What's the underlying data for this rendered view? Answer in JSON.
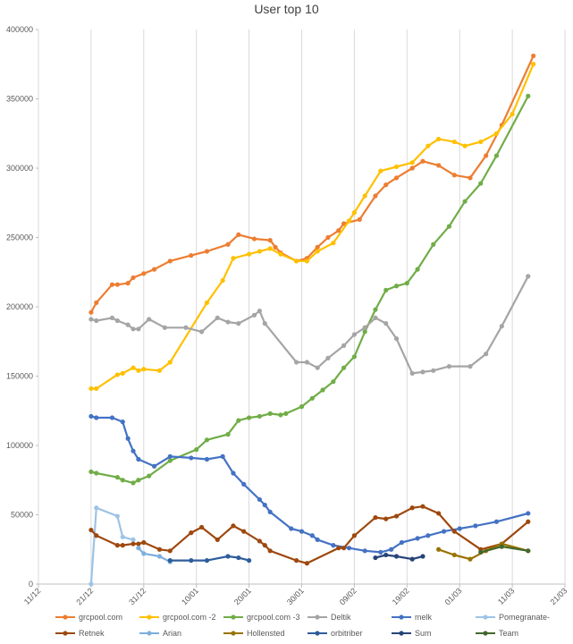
{
  "chart_data": {
    "type": "line",
    "title": "User top 10",
    "xlabel": "",
    "ylabel": "",
    "x_axis_type": "date",
    "xlim": [
      "2018-12-11",
      "2019-03-21"
    ],
    "ylim": [
      0,
      400000
    ],
    "y_ticks": [
      0,
      50000,
      100000,
      150000,
      200000,
      250000,
      300000,
      350000,
      400000
    ],
    "y_tick_labels": [
      "0",
      "50000",
      "100000",
      "150000",
      "200000",
      "250000",
      "300000",
      "350000",
      "400000"
    ],
    "x_ticks": [
      "2018-12-11",
      "2018-12-21",
      "2018-12-31",
      "2019-01-10",
      "2019-01-20",
      "2019-01-30",
      "2019-02-09",
      "2019-02-19",
      "2019-03-01",
      "2019-03-11",
      "2019-03-21"
    ],
    "x_tick_labels": [
      "11/12",
      "21/12",
      "31/12",
      "10/01",
      "20/01",
      "30/01",
      "09/02",
      "19/02",
      "01/03",
      "11/03",
      "21/03"
    ],
    "grid": "vertical",
    "legend_position": "bottom",
    "series": [
      {
        "name": "grcpool.com",
        "color": "#ED7D31",
        "points": [
          [
            "2018-12-21",
            196000
          ],
          [
            "2018-12-22",
            203000
          ],
          [
            "2018-12-25",
            216000
          ],
          [
            "2018-12-26",
            216000
          ],
          [
            "2018-12-28",
            217000
          ],
          [
            "2018-12-29",
            221000
          ],
          [
            "2018-12-31",
            224000
          ],
          [
            "2019-01-02",
            227000
          ],
          [
            "2019-01-05",
            233000
          ],
          [
            "2019-01-09",
            237000
          ],
          [
            "2019-01-12",
            240000
          ],
          [
            "2019-01-16",
            245000
          ],
          [
            "2019-01-18",
            252000
          ],
          [
            "2019-01-21",
            249000
          ],
          [
            "2019-01-24",
            248000
          ],
          [
            "2019-01-25",
            243000
          ],
          [
            "2019-01-26",
            239000
          ],
          [
            "2019-01-29",
            233000
          ],
          [
            "2019-01-31",
            235000
          ],
          [
            "2019-02-02",
            243000
          ],
          [
            "2019-02-04",
            250000
          ],
          [
            "2019-02-06",
            255000
          ],
          [
            "2019-02-07",
            260000
          ],
          [
            "2019-02-10",
            263000
          ],
          [
            "2019-02-13",
            280000
          ],
          [
            "2019-02-15",
            288000
          ],
          [
            "2019-02-17",
            293000
          ],
          [
            "2019-02-20",
            300000
          ],
          [
            "2019-02-22",
            305000
          ],
          [
            "2019-02-25",
            302000
          ],
          [
            "2019-02-28",
            295000
          ],
          [
            "2019-03-03",
            293000
          ],
          [
            "2019-03-06",
            309000
          ],
          [
            "2019-03-09",
            331000
          ],
          [
            "2019-03-15",
            381000
          ]
        ]
      },
      {
        "name": "grcpool.com -2",
        "color": "#FFC000",
        "points": [
          [
            "2018-12-21",
            141000
          ],
          [
            "2018-12-22",
            141000
          ],
          [
            "2018-12-26",
            151000
          ],
          [
            "2018-12-27",
            152000
          ],
          [
            "2018-12-29",
            156000
          ],
          [
            "2018-12-30",
            154000
          ],
          [
            "2018-12-31",
            155000
          ],
          [
            "2019-01-03",
            154000
          ],
          [
            "2019-01-05",
            160000
          ],
          [
            "2019-01-12",
            203000
          ],
          [
            "2019-01-15",
            219000
          ],
          [
            "2019-01-17",
            235000
          ],
          [
            "2019-01-20",
            238000
          ],
          [
            "2019-01-22",
            240000
          ],
          [
            "2019-01-24",
            242000
          ],
          [
            "2019-01-26",
            238000
          ],
          [
            "2019-01-29",
            233000
          ],
          [
            "2019-01-31",
            233000
          ],
          [
            "2019-02-02",
            240000
          ],
          [
            "2019-02-05",
            246000
          ],
          [
            "2019-02-08",
            262000
          ],
          [
            "2019-02-09",
            268000
          ],
          [
            "2019-02-11",
            280000
          ],
          [
            "2019-02-14",
            298000
          ],
          [
            "2019-02-17",
            301000
          ],
          [
            "2019-02-20",
            304000
          ],
          [
            "2019-02-23",
            316000
          ],
          [
            "2019-02-25",
            321000
          ],
          [
            "2019-02-28",
            319000
          ],
          [
            "2019-03-02",
            316000
          ],
          [
            "2019-03-05",
            319000
          ],
          [
            "2019-03-08",
            325000
          ],
          [
            "2019-03-11",
            339000
          ],
          [
            "2019-03-15",
            375000
          ]
        ]
      },
      {
        "name": "grcpool.com -3",
        "color": "#70AD47",
        "points": [
          [
            "2018-12-21",
            81000
          ],
          [
            "2018-12-22",
            80000
          ],
          [
            "2018-12-26",
            77000
          ],
          [
            "2018-12-27",
            75000
          ],
          [
            "2018-12-29",
            73000
          ],
          [
            "2018-12-30",
            75000
          ],
          [
            "2019-01-01",
            78000
          ],
          [
            "2019-01-05",
            89000
          ],
          [
            "2019-01-10",
            97000
          ],
          [
            "2019-01-12",
            104000
          ],
          [
            "2019-01-16",
            108000
          ],
          [
            "2019-01-18",
            118000
          ],
          [
            "2019-01-20",
            120000
          ],
          [
            "2019-01-22",
            121000
          ],
          [
            "2019-01-24",
            123000
          ],
          [
            "2019-01-26",
            122000
          ],
          [
            "2019-01-27",
            123000
          ],
          [
            "2019-01-30",
            128000
          ],
          [
            "2019-02-01",
            134000
          ],
          [
            "2019-02-03",
            140000
          ],
          [
            "2019-02-05",
            146000
          ],
          [
            "2019-02-07",
            156000
          ],
          [
            "2019-02-09",
            164000
          ],
          [
            "2019-02-11",
            182000
          ],
          [
            "2019-02-13",
            198000
          ],
          [
            "2019-02-15",
            212000
          ],
          [
            "2019-02-17",
            215000
          ],
          [
            "2019-02-19",
            217000
          ],
          [
            "2019-02-21",
            227000
          ],
          [
            "2019-02-24",
            245000
          ],
          [
            "2019-02-27",
            258000
          ],
          [
            "2019-03-02",
            276000
          ],
          [
            "2019-03-05",
            289000
          ],
          [
            "2019-03-08",
            309000
          ],
          [
            "2019-03-14",
            352000
          ]
        ]
      },
      {
        "name": "Deltik",
        "color": "#A5A5A5",
        "points": [
          [
            "2018-12-21",
            191000
          ],
          [
            "2018-12-22",
            190000
          ],
          [
            "2018-12-25",
            192000
          ],
          [
            "2018-12-26",
            190000
          ],
          [
            "2018-12-28",
            187000
          ],
          [
            "2018-12-29",
            184000
          ],
          [
            "2018-12-30",
            184000
          ],
          [
            "2019-01-01",
            191000
          ],
          [
            "2019-01-04",
            185000
          ],
          [
            "2019-01-08",
            185000
          ],
          [
            "2019-01-11",
            182000
          ],
          [
            "2019-01-14",
            192000
          ],
          [
            "2019-01-16",
            189000
          ],
          [
            "2019-01-18",
            188000
          ],
          [
            "2019-01-21",
            194000
          ],
          [
            "2019-01-22",
            197000
          ],
          [
            "2019-01-23",
            188000
          ],
          [
            "2019-01-29",
            160000
          ],
          [
            "2019-01-31",
            160000
          ],
          [
            "2019-02-02",
            156000
          ],
          [
            "2019-02-04",
            163000
          ],
          [
            "2019-02-07",
            172000
          ],
          [
            "2019-02-09",
            180000
          ],
          [
            "2019-02-11",
            185000
          ],
          [
            "2019-02-13",
            192000
          ],
          [
            "2019-02-15",
            188000
          ],
          [
            "2019-02-17",
            177000
          ],
          [
            "2019-02-20",
            152000
          ],
          [
            "2019-02-22",
            153000
          ],
          [
            "2019-02-24",
            154000
          ],
          [
            "2019-02-27",
            157000
          ],
          [
            "2019-03-03",
            157000
          ],
          [
            "2019-03-06",
            166000
          ],
          [
            "2019-03-09",
            186000
          ],
          [
            "2019-03-14",
            222000
          ]
        ]
      },
      {
        "name": "melk",
        "color": "#4472C4",
        "points": [
          [
            "2018-12-21",
            121000
          ],
          [
            "2018-12-22",
            120000
          ],
          [
            "2018-12-25",
            120000
          ],
          [
            "2018-12-27",
            117000
          ],
          [
            "2018-12-28",
            105000
          ],
          [
            "2018-12-29",
            96000
          ],
          [
            "2018-12-30",
            90000
          ],
          [
            "2019-01-02",
            85000
          ],
          [
            "2019-01-05",
            92000
          ],
          [
            "2019-01-09",
            91000
          ],
          [
            "2019-01-12",
            90000
          ],
          [
            "2019-01-15",
            92000
          ],
          [
            "2019-01-17",
            80000
          ],
          [
            "2019-01-19",
            72000
          ],
          [
            "2019-01-22",
            61000
          ],
          [
            "2019-01-23",
            57000
          ],
          [
            "2019-01-24",
            52000
          ],
          [
            "2019-01-28",
            40000
          ],
          [
            "2019-01-30",
            38000
          ],
          [
            "2019-02-01",
            35000
          ],
          [
            "2019-02-02",
            32000
          ],
          [
            "2019-02-05",
            28000
          ],
          [
            "2019-02-08",
            26000
          ],
          [
            "2019-02-11",
            24000
          ],
          [
            "2019-02-14",
            23000
          ],
          [
            "2019-02-16",
            25000
          ],
          [
            "2019-02-18",
            30000
          ],
          [
            "2019-02-21",
            33000
          ],
          [
            "2019-02-23",
            35000
          ],
          [
            "2019-02-26",
            38000
          ],
          [
            "2019-03-01",
            40000
          ],
          [
            "2019-03-04",
            42000
          ],
          [
            "2019-03-08",
            45000
          ],
          [
            "2019-03-14",
            51000
          ]
        ]
      },
      {
        "name": "Pomegranate-",
        "color": "#9DC3E6",
        "points": [
          [
            "2018-12-21",
            0
          ],
          [
            "2018-12-22",
            55000
          ],
          [
            "2018-12-26",
            49000
          ],
          [
            "2018-12-27",
            34000
          ],
          [
            "2018-12-29",
            32000
          ]
        ]
      },
      {
        "name": "Retnek",
        "color": "#9E480E",
        "points": [
          [
            "2018-12-21",
            39000
          ],
          [
            "2018-12-22",
            35000
          ],
          [
            "2018-12-26",
            28000
          ],
          [
            "2018-12-27",
            28000
          ],
          [
            "2018-12-29",
            29000
          ],
          [
            "2018-12-30",
            29000
          ],
          [
            "2018-12-31",
            30000
          ],
          [
            "2019-01-03",
            25000
          ],
          [
            "2019-01-05",
            24000
          ],
          [
            "2019-01-09",
            37000
          ],
          [
            "2019-01-11",
            41000
          ],
          [
            "2019-01-14",
            32000
          ],
          [
            "2019-01-17",
            42000
          ],
          [
            "2019-01-19",
            38000
          ],
          [
            "2019-01-22",
            31000
          ],
          [
            "2019-01-23",
            28000
          ],
          [
            "2019-01-24",
            24000
          ],
          [
            "2019-01-29",
            17000
          ],
          [
            "2019-01-31",
            15000
          ],
          [
            "2019-02-06",
            26000
          ],
          [
            "2019-02-07",
            26000
          ],
          [
            "2019-02-09",
            35000
          ],
          [
            "2019-02-13",
            48000
          ],
          [
            "2019-02-15",
            47000
          ],
          [
            "2019-02-17",
            49000
          ],
          [
            "2019-02-20",
            55000
          ],
          [
            "2019-02-22",
            56000
          ],
          [
            "2019-02-25",
            51000
          ],
          [
            "2019-02-28",
            38000
          ],
          [
            "2019-03-05",
            25000
          ],
          [
            "2019-03-09",
            29000
          ],
          [
            "2019-03-14",
            45000
          ]
        ]
      },
      {
        "name": "Arian",
        "color": "#7CAFDD",
        "points": [
          [
            "2018-12-30",
            26000
          ],
          [
            "2018-12-31",
            22000
          ],
          [
            "2019-01-03",
            20000
          ],
          [
            "2019-01-05",
            16000
          ]
        ]
      },
      {
        "name": "Hollensted",
        "color": "#997300",
        "points": [
          [
            "2019-02-25",
            25000
          ],
          [
            "2019-02-28",
            21000
          ],
          [
            "2019-03-03",
            18000
          ],
          [
            "2019-03-06",
            24000
          ],
          [
            "2019-03-09",
            29000
          ],
          [
            "2019-03-14",
            24000
          ]
        ]
      },
      {
        "name": "orbitriber",
        "color": "#2E5D9B",
        "points": [
          [
            "2019-01-05",
            17000
          ],
          [
            "2019-01-09",
            17000
          ],
          [
            "2019-01-12",
            17000
          ],
          [
            "2019-01-16",
            20000
          ],
          [
            "2019-01-18",
            19000
          ],
          [
            "2019-01-20",
            17000
          ]
        ]
      },
      {
        "name": "Sum",
        "color": "#264478",
        "points": [
          [
            "2019-02-13",
            19000
          ],
          [
            "2019-02-15",
            21000
          ],
          [
            "2019-02-17",
            20000
          ],
          [
            "2019-02-20",
            18000
          ],
          [
            "2019-02-22",
            20000
          ]
        ]
      },
      {
        "name": "Team",
        "color": "#43682B",
        "points": [
          [
            "2019-03-05",
            23000
          ],
          [
            "2019-03-09",
            27000
          ],
          [
            "2019-03-14",
            24000
          ]
        ]
      }
    ]
  }
}
